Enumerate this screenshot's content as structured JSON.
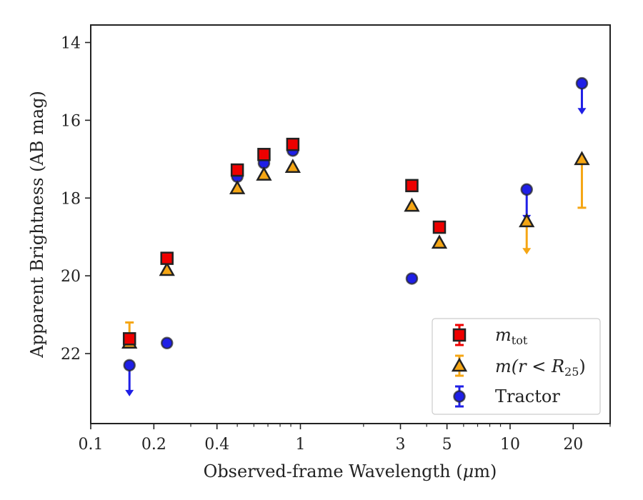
{
  "chart_data": {
    "type": "scatter",
    "xlabel_main": "Observed-frame Wavelength (",
    "xlabel_mu": "μ",
    "xlabel_tail": "m)",
    "ylabel": "Apparent Brightness (AB mag)",
    "x_scale": "log",
    "y_inverted": true,
    "xlim": [
      0.1,
      30
    ],
    "ylim": [
      23.8,
      13.55
    ],
    "x_ticks": [
      0.1,
      0.2,
      0.4,
      1,
      3,
      5,
      10,
      20
    ],
    "x_tick_labels": [
      "0.1",
      "0.2",
      "0.4",
      "1",
      "3",
      "5",
      "10",
      "20"
    ],
    "y_ticks": [
      14,
      16,
      18,
      20,
      22
    ],
    "y_tick_labels": [
      "14",
      "16",
      "18",
      "20",
      "22"
    ],
    "legend_position": "lower-right",
    "legend_labels": {
      "m_tot_base": "m",
      "m_tot_sub": "tot",
      "m_r_prefix": "m",
      "m_r_mid": "(r < R",
      "m_r_sub": "25",
      "m_r_close": ")",
      "tractor": "Tractor"
    },
    "series": [
      {
        "key": "tractor",
        "marker": "circle",
        "color": "#1f1fe6",
        "points": [
          {
            "x": 0.153,
            "y": 22.3,
            "upper_limit": true,
            "limit_to": 23.1
          },
          {
            "x": 0.231,
            "y": 21.73
          },
          {
            "x": 0.5,
            "y": 17.45
          },
          {
            "x": 0.67,
            "y": 17.1
          },
          {
            "x": 0.92,
            "y": 16.78
          },
          {
            "x": 3.4,
            "y": 20.07
          },
          {
            "x": 12.0,
            "y": 17.78,
            "upper_limit": true,
            "limit_to": 18.6
          },
          {
            "x": 22.0,
            "y": 15.05,
            "upper_limit": true,
            "limit_to": 15.85
          }
        ]
      },
      {
        "key": "m_r",
        "marker": "triangle",
        "color": "#f5a614",
        "points": [
          {
            "x": 0.153,
            "y": 21.72,
            "err_low": 21.2,
            "err_high": 21.72
          },
          {
            "x": 0.231,
            "y": 19.85
          },
          {
            "x": 0.5,
            "y": 17.75
          },
          {
            "x": 0.67,
            "y": 17.4
          },
          {
            "x": 0.92,
            "y": 17.2
          },
          {
            "x": 3.4,
            "y": 18.2
          },
          {
            "x": 4.6,
            "y": 19.15
          },
          {
            "x": 12.0,
            "y": 18.6,
            "upper_limit": true,
            "limit_to": 19.45
          },
          {
            "x": 22.0,
            "y": 17.0,
            "err_low": 17.0,
            "err_high": 18.25
          }
        ]
      },
      {
        "key": "m_tot",
        "marker": "square",
        "color": "#ee0000",
        "points": [
          {
            "x": 0.153,
            "y": 21.62
          },
          {
            "x": 0.231,
            "y": 19.55
          },
          {
            "x": 0.5,
            "y": 17.28
          },
          {
            "x": 0.67,
            "y": 16.88
          },
          {
            "x": 0.92,
            "y": 16.62
          },
          {
            "x": 3.4,
            "y": 17.68
          },
          {
            "x": 4.6,
            "y": 18.75
          }
        ]
      }
    ]
  }
}
